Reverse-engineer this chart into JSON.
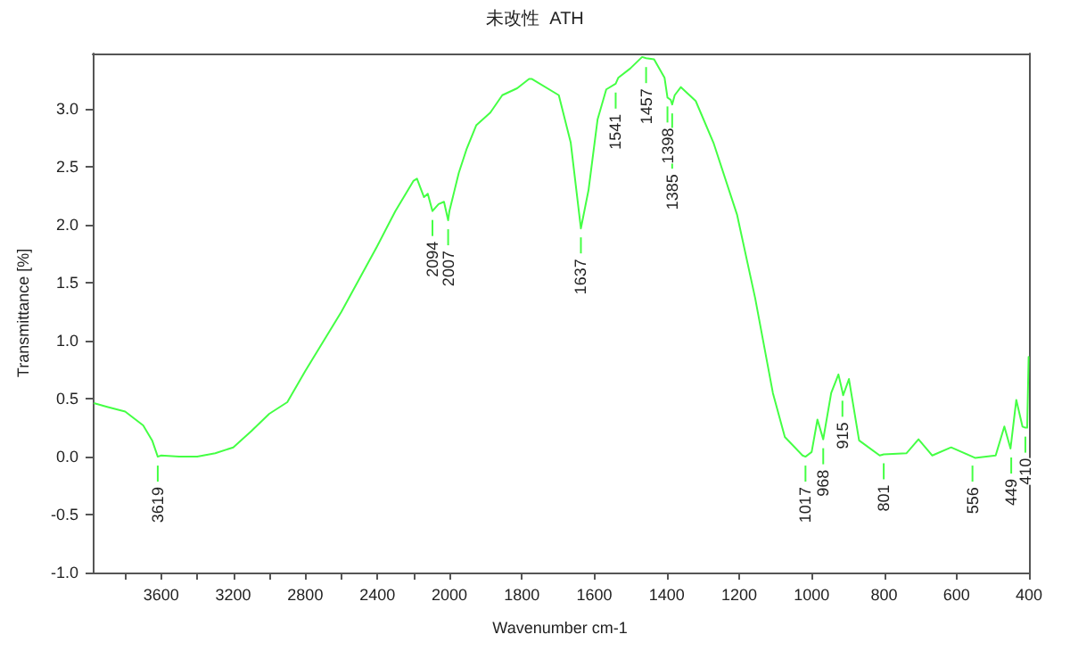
{
  "chart_data": [
    {
      "type": "line",
      "ylabel": "Transmittance [%]",
      "xlim": [
        3980,
        2000
      ],
      "ylim": [
        -1,
        3.48
      ],
      "xticks": [
        {
          "value": 3800,
          "label": null
        },
        3600,
        {
          "value": 3400,
          "label": null
        },
        3200,
        {
          "value": 3000,
          "label": null
        },
        2800,
        {
          "value": 2600,
          "label": null
        },
        2400,
        {
          "value": 2200,
          "label": null
        }
      ],
      "yticks": [
        {
          "value": -1,
          "label": "-1.0"
        },
        {
          "value": -0.5,
          "label": "-0.5"
        },
        {
          "value": 0,
          "label": "0.0"
        },
        {
          "value": 0.5,
          "label": "0.5"
        },
        {
          "value": 1,
          "label": "1.0"
        },
        {
          "value": 1.5,
          "label": "1.5"
        },
        {
          "value": 2,
          "label": "2.0"
        },
        {
          "value": 2.5,
          "label": "2.5"
        },
        {
          "value": 3,
          "label": "3.0"
        }
      ],
      "grid": false,
      "marker": "none",
      "line_style": "solid",
      "x": [
        3970,
        3900,
        3800,
        3700,
        3650,
        3619,
        3600,
        3500,
        3400,
        3300,
        3200,
        3100,
        3000,
        2900,
        2800,
        2600,
        2400,
        2300,
        2200,
        2180,
        2141,
        2120,
        2094,
        2060,
        2030,
        2007,
        2000
      ],
      "series": [
        {
          "color": "#44ff44",
          "values": [
            0.46,
            0.43,
            0.39,
            0.27,
            0.14,
            0.0,
            0.01,
            0.0,
            0.0,
            0.03,
            0.08,
            0.22,
            0.37,
            0.47,
            0.74,
            1.25,
            1.82,
            2.12,
            2.38,
            2.4,
            2.24,
            2.27,
            2.12,
            2.18,
            2.2,
            2.04,
            2.12
          ]
        }
      ],
      "annotations": [
        {
          "text": "3619",
          "x": 3619,
          "y": 0.0
        },
        {
          "text": "2094",
          "x": 2094,
          "y": 2.12
        },
        {
          "text": "2007",
          "x": 2007,
          "y": 2.04
        }
      ]
    },
    {
      "type": "line",
      "title": "未改性  ATH",
      "xlabel": "Wavenumber cm-1",
      "xlim": [
        2000,
        400
      ],
      "ylim": [
        -1,
        3.48
      ],
      "tick_labels": "x",
      "xticks": [
        2000,
        1800,
        1600,
        1400,
        1200,
        1000,
        800,
        600,
        400
      ],
      "grid": false,
      "marker": "none",
      "line_style": "solid",
      "x": [
        2000,
        1974,
        1952,
        1926,
        1887,
        1854,
        1813,
        1780,
        1772,
        1698,
        1665,
        1637,
        1616,
        1591,
        1567,
        1541,
        1534,
        1501,
        1468,
        1457,
        1435,
        1406,
        1398,
        1389,
        1385,
        1378,
        1361,
        1320,
        1271,
        1206,
        1156,
        1107,
        1074,
        1025,
        1017,
        1000,
        984,
        968,
        946,
        926,
        915,
        913,
        897,
        869,
        812,
        801,
        738,
        705,
        667,
        615,
        556,
        549,
        492,
        468,
        451,
        449,
        435,
        418,
        410,
        405,
        401
      ],
      "series": [
        {
          "color": "#44ff44",
          "values": [
            2.12,
            2.45,
            2.66,
            2.86,
            2.97,
            3.12,
            3.18,
            3.26,
            3.26,
            3.12,
            2.71,
            1.97,
            2.3,
            2.91,
            3.17,
            3.22,
            3.27,
            3.35,
            3.45,
            3.44,
            3.43,
            3.27,
            3.1,
            3.08,
            3.04,
            3.12,
            3.19,
            3.07,
            2.71,
            2.09,
            1.37,
            0.55,
            0.17,
            0.01,
            0.0,
            0.04,
            0.32,
            0.15,
            0.55,
            0.71,
            0.56,
            0.53,
            0.67,
            0.14,
            0.01,
            0.02,
            0.03,
            0.15,
            0.01,
            0.08,
            0.0,
            -0.01,
            0.01,
            0.26,
            0.07,
            0.07,
            0.49,
            0.26,
            0.25,
            0.25,
            0.86
          ]
        }
      ],
      "annotations": [
        {
          "text": "1637",
          "x": 1637,
          "y": 1.97
        },
        {
          "text": "1541",
          "x": 1541,
          "y": 3.22
        },
        {
          "text": "1457",
          "x": 1457,
          "y": 3.44
        },
        {
          "text": "1398",
          "x": 1398,
          "y": 3.1
        },
        {
          "text": "1385",
          "x": 1385,
          "y": 3.04
        },
        {
          "text": "1017",
          "x": 1017,
          "y": 0.0
        },
        {
          "text": "968",
          "x": 968,
          "y": 0.15
        },
        {
          "text": "915",
          "x": 915,
          "y": 0.56
        },
        {
          "text": "801",
          "x": 801,
          "y": 0.02
        },
        {
          "text": "556",
          "x": 556,
          "y": 0.0
        },
        {
          "text": "449",
          "x": 449,
          "y": 0.07
        },
        {
          "text": "410",
          "x": 410,
          "y": 0.25
        }
      ]
    }
  ]
}
